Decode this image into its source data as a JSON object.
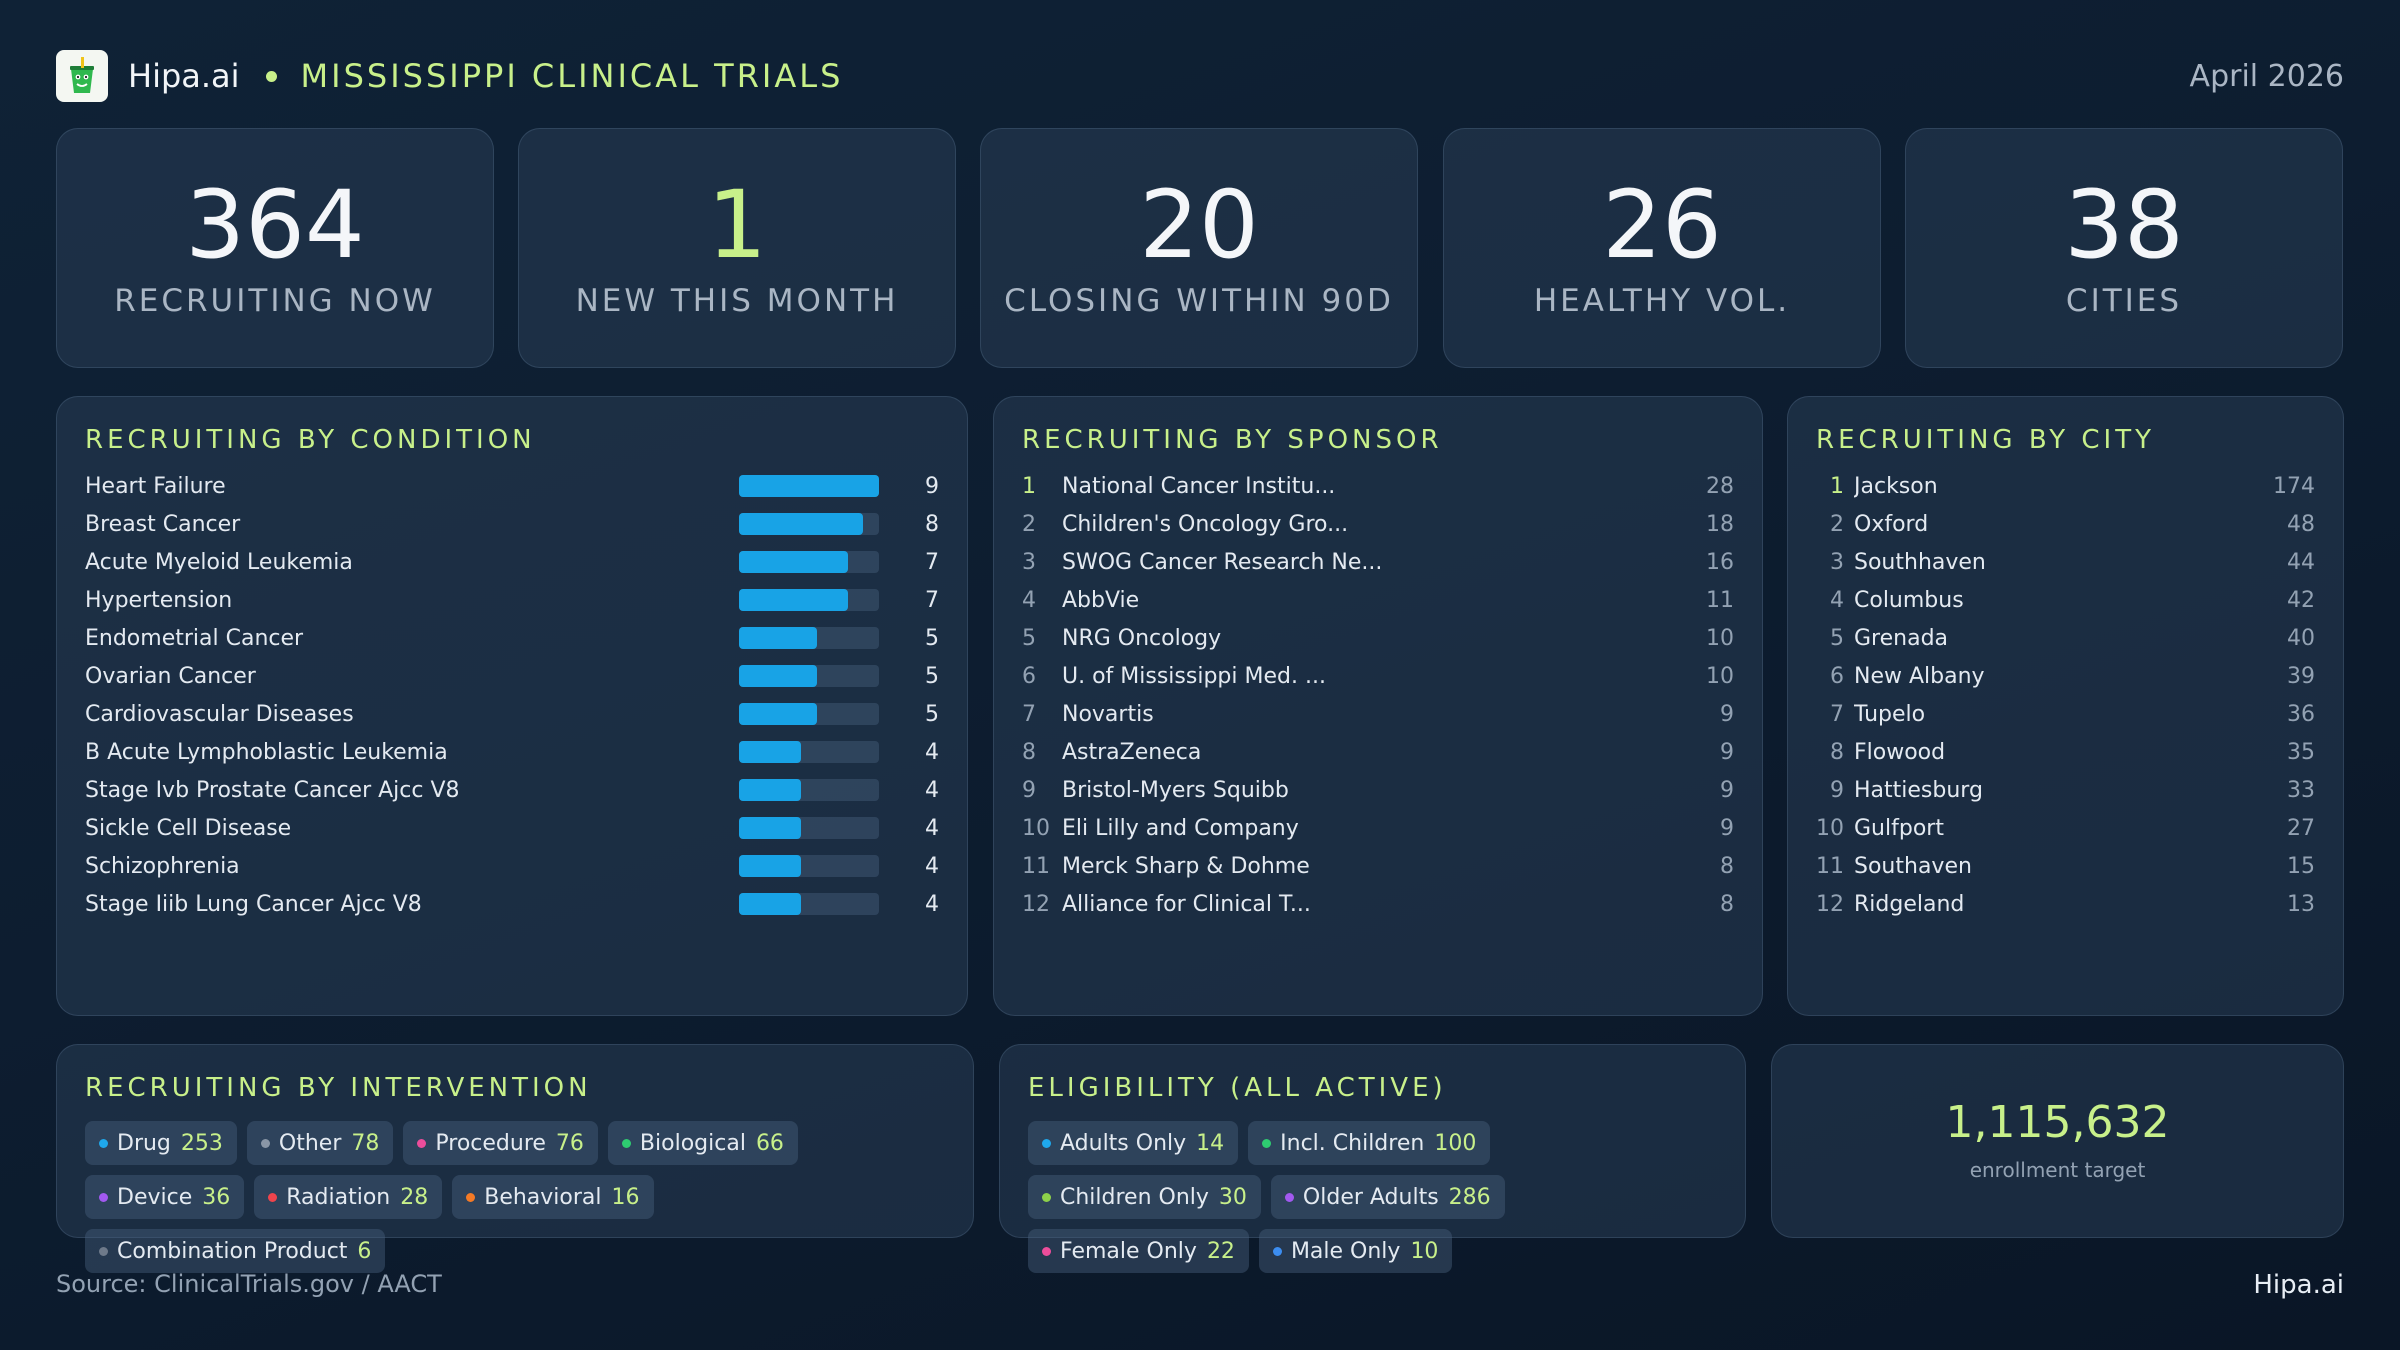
{
  "header": {
    "brand": "Hipa.ai",
    "title": "MISSISSIPPI CLINICAL TRIALS",
    "date": "April 2026",
    "accent": "#c8f08a"
  },
  "kpis": [
    {
      "value": "364",
      "label": "RECRUITING NOW"
    },
    {
      "value": "1",
      "label": "NEW THIS MONTH"
    },
    {
      "value": "20",
      "label": "CLOSING WITHIN 90D"
    },
    {
      "value": "26",
      "label": "HEALTHY VOL."
    },
    {
      "value": "38",
      "label": "CITIES"
    }
  ],
  "conditions": {
    "title": "RECRUITING BY CONDITION",
    "max": 9,
    "items": [
      {
        "name": "Heart Failure",
        "count": 9
      },
      {
        "name": "Breast Cancer",
        "count": 8
      },
      {
        "name": "Acute Myeloid Leukemia",
        "count": 7
      },
      {
        "name": "Hypertension",
        "count": 7
      },
      {
        "name": "Endometrial Cancer",
        "count": 5
      },
      {
        "name": "Ovarian Cancer",
        "count": 5
      },
      {
        "name": "Cardiovascular Diseases",
        "count": 5
      },
      {
        "name": "B Acute Lymphoblastic Leukemia",
        "count": 4
      },
      {
        "name": "Stage Ivb Prostate Cancer Ajcc V8",
        "count": 4
      },
      {
        "name": "Sickle Cell Disease",
        "count": 4
      },
      {
        "name": "Schizophrenia",
        "count": 4
      },
      {
        "name": "Stage Iiib Lung Cancer Ajcc V8",
        "count": 4
      }
    ]
  },
  "sponsors": {
    "title": "RECRUITING BY SPONSOR",
    "items": [
      {
        "rank": "1",
        "name": "National Cancer Institu...",
        "count": "28"
      },
      {
        "rank": "2",
        "name": "Children's Oncology Gro...",
        "count": "18"
      },
      {
        "rank": "3",
        "name": "SWOG Cancer Research Ne...",
        "count": "16"
      },
      {
        "rank": "4",
        "name": "AbbVie",
        "count": "11"
      },
      {
        "rank": "5",
        "name": "NRG Oncology",
        "count": "10"
      },
      {
        "rank": "6",
        "name": "U. of Mississippi Med. ...",
        "count": "10"
      },
      {
        "rank": "7",
        "name": "Novartis",
        "count": "9"
      },
      {
        "rank": "8",
        "name": "AstraZeneca",
        "count": "9"
      },
      {
        "rank": "9",
        "name": "Bristol-Myers Squibb",
        "count": "9"
      },
      {
        "rank": "10",
        "name": "Eli Lilly and Company",
        "count": "9"
      },
      {
        "rank": "11",
        "name": "Merck Sharp & Dohme",
        "count": "8"
      },
      {
        "rank": "12",
        "name": "Alliance for Clinical T...",
        "count": "8"
      }
    ]
  },
  "cities": {
    "title": "RECRUITING BY CITY",
    "items": [
      {
        "rank": "1",
        "name": "Jackson",
        "count": "174"
      },
      {
        "rank": "2",
        "name": "Oxford",
        "count": "48"
      },
      {
        "rank": "3",
        "name": "Southhaven",
        "count": "44"
      },
      {
        "rank": "4",
        "name": "Columbus",
        "count": "42"
      },
      {
        "rank": "5",
        "name": "Grenada",
        "count": "40"
      },
      {
        "rank": "6",
        "name": "New Albany",
        "count": "39"
      },
      {
        "rank": "7",
        "name": "Tupelo",
        "count": "36"
      },
      {
        "rank": "8",
        "name": "Flowood",
        "count": "35"
      },
      {
        "rank": "9",
        "name": "Hattiesburg",
        "count": "33"
      },
      {
        "rank": "10",
        "name": "Gulfport",
        "count": "27"
      },
      {
        "rank": "11",
        "name": "Southaven",
        "count": "15"
      },
      {
        "rank": "12",
        "name": "Ridgeland",
        "count": "13"
      }
    ]
  },
  "interventions": {
    "title": "RECRUITING BY INTERVENTION",
    "items": [
      {
        "name": "Drug",
        "count": "253",
        "color": "#1fa8ec"
      },
      {
        "name": "Other",
        "count": "78",
        "color": "#8a96a6"
      },
      {
        "name": "Procedure",
        "count": "76",
        "color": "#ec4d9b"
      },
      {
        "name": "Biological",
        "count": "66",
        "color": "#2ecc71"
      },
      {
        "name": "Device",
        "count": "36",
        "color": "#a259f0"
      },
      {
        "name": "Radiation",
        "count": "28",
        "color": "#f0444c"
      },
      {
        "name": "Behavioral",
        "count": "16",
        "color": "#f47a26"
      },
      {
        "name": "Combination Product",
        "count": "6",
        "color": "#6e7a8a"
      }
    ]
  },
  "eligibility": {
    "title": "ELIGIBILITY (ALL ACTIVE)",
    "items": [
      {
        "name": "Adults Only",
        "count": "14",
        "color": "#1fa8ec"
      },
      {
        "name": "Incl. Children",
        "count": "100",
        "color": "#2ecc71"
      },
      {
        "name": "Children Only",
        "count": "30",
        "color": "#8ed14a"
      },
      {
        "name": "Older Adults",
        "count": "286",
        "color": "#a259f0"
      },
      {
        "name": "Female Only",
        "count": "22",
        "color": "#ec4d9b"
      },
      {
        "name": "Male Only",
        "count": "10",
        "color": "#3c8df0"
      }
    ]
  },
  "enrollment": {
    "value": "1,115,632",
    "label": "enrollment target"
  },
  "footer": {
    "source": "Source: ClinicalTrials.gov / AACT",
    "brand": "Hipa.ai"
  }
}
